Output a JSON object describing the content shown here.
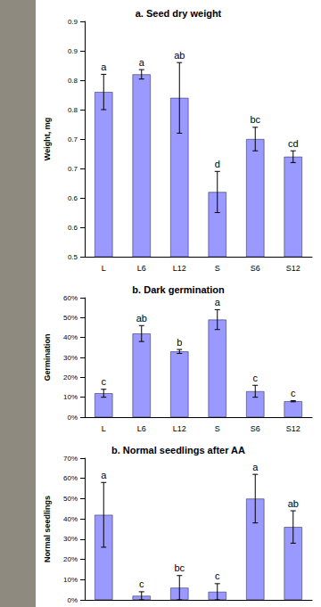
{
  "chart_data": [
    {
      "type": "bar",
      "title": "a. Seed dry weight",
      "y_label": "Weight, mg",
      "categories": [
        "L",
        "L6",
        "L12",
        "S",
        "S6",
        "S12"
      ],
      "values": [
        0.78,
        0.81,
        0.77,
        0.61,
        0.7,
        0.67
      ],
      "errors": [
        0.03,
        0.008,
        0.06,
        0.035,
        0.02,
        0.01
      ],
      "annotations": [
        "a",
        "a",
        "ab",
        "d",
        "bc",
        "cd"
      ],
      "color": "#9999ff",
      "grid": false,
      "ylim": [
        0.5,
        0.9
      ],
      "yticks": [
        {
          "value": 0.5,
          "label": "0.5"
        },
        {
          "value": 0.55,
          "label": "0.6"
        },
        {
          "value": 0.6,
          "label": "0.6"
        },
        {
          "value": 0.65,
          "label": "0.7"
        },
        {
          "value": 0.7,
          "label": "0.7"
        },
        {
          "value": 0.75,
          "label": "0.8"
        },
        {
          "value": 0.8,
          "label": "0.8"
        },
        {
          "value": 0.85,
          "label": "0.9"
        },
        {
          "value": 0.9,
          "label": "0.9"
        }
      ]
    },
    {
      "type": "bar",
      "title": "b. Dark germination",
      "y_label": "Germination",
      "categories": [
        "L",
        "L6",
        "L12",
        "S",
        "S6",
        "S12"
      ],
      "values": [
        12,
        42,
        33,
        49,
        13,
        8
      ],
      "errors": [
        2,
        4,
        1,
        5,
        3,
        0.3
      ],
      "annotations": [
        "c",
        "ab",
        "b",
        "a",
        "c",
        "c"
      ],
      "color": "#9999ff",
      "grid": false,
      "ylim": [
        0,
        60
      ],
      "yticks": [
        {
          "value": 0,
          "label": "0%"
        },
        {
          "value": 10,
          "label": "10%"
        },
        {
          "value": 20,
          "label": "20%"
        },
        {
          "value": 30,
          "label": "30%"
        },
        {
          "value": 40,
          "label": "40%"
        },
        {
          "value": 50,
          "label": "50%"
        },
        {
          "value": 60,
          "label": "60%"
        }
      ]
    },
    {
      "type": "bar",
      "title": "b. Normal seedlings after AA",
      "y_label": "Normal seedlings",
      "categories": [
        null,
        null,
        null,
        null,
        null,
        null
      ],
      "values": [
        42,
        2,
        6,
        4,
        50,
        36
      ],
      "errors": [
        16,
        2,
        6,
        4,
        12,
        8
      ],
      "annotations": [
        "a",
        "c",
        "bc",
        "c",
        "a",
        "ab"
      ],
      "color": "#9999ff",
      "grid": false,
      "ylim": [
        0,
        70
      ],
      "yticks": [
        {
          "value": 0,
          "label": "0%"
        },
        {
          "value": 10,
          "label": "10%"
        },
        {
          "value": 20,
          "label": "20%"
        },
        {
          "value": 30,
          "label": "30%"
        },
        {
          "value": 40,
          "label": "40%"
        },
        {
          "value": 50,
          "label": "50%"
        },
        {
          "value": 60,
          "label": "60%"
        },
        {
          "value": 70,
          "label": "70%"
        }
      ]
    }
  ]
}
